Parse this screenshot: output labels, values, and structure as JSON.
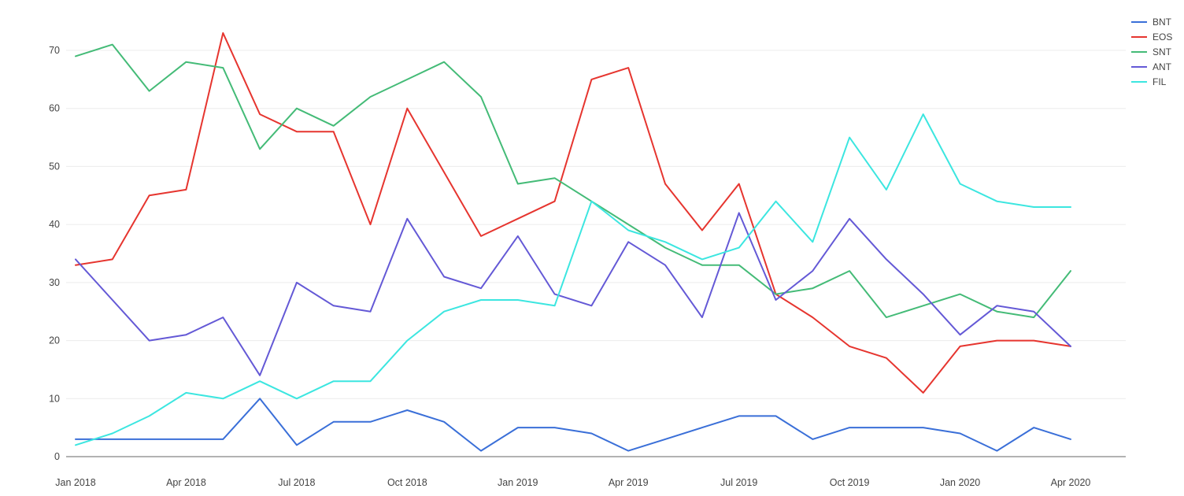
{
  "colors": {
    "background": "#ffffff",
    "gridline": "#ececec",
    "axis_line": "#666666",
    "tick_label": "#444444"
  },
  "chart_data": {
    "type": "line",
    "title": "",
    "xlabel": "",
    "ylabel": "",
    "grid": true,
    "legend_position": "top-right",
    "x_tick_labels": [
      "Jan 2018",
      "Apr 2018",
      "Jul 2018",
      "Oct 2018",
      "Jan 2019",
      "Apr 2019",
      "Jul 2019",
      "Oct 2019",
      "Jan 2020",
      "Apr 2020"
    ],
    "x_tick_month_indices": [
      0,
      3,
      6,
      9,
      12,
      15,
      18,
      21,
      24,
      27
    ],
    "y_ticks": [
      0,
      10,
      20,
      30,
      40,
      50,
      60,
      70
    ],
    "ylim": [
      0,
      75
    ],
    "series": [
      {
        "name": "BNT",
        "color": "#3a6fd8",
        "values": [
          3,
          3,
          3,
          3,
          3,
          10,
          2,
          6,
          6,
          8,
          6,
          1,
          5,
          5,
          4,
          1,
          3,
          5,
          7,
          7,
          3,
          5,
          5,
          5,
          4,
          1,
          5,
          3
        ]
      },
      {
        "name": "EOS",
        "color": "#e6352f",
        "values": [
          33,
          34,
          45,
          46,
          73,
          59,
          56,
          56,
          40,
          60,
          49,
          38,
          41,
          44,
          65,
          67,
          47,
          39,
          47,
          28,
          24,
          19,
          17,
          11,
          19,
          20,
          20,
          19
        ]
      },
      {
        "name": "SNT",
        "color": "#44bb77",
        "values": [
          69,
          71,
          63,
          68,
          67,
          53,
          60,
          57,
          62,
          65,
          68,
          62,
          47,
          48,
          44,
          40,
          36,
          33,
          33,
          28,
          29,
          32,
          24,
          26,
          28,
          25,
          24,
          32
        ]
      },
      {
        "name": "ANT",
        "color": "#6459d6",
        "values": [
          34,
          27,
          20,
          21,
          24,
          14,
          30,
          26,
          25,
          41,
          31,
          29,
          38,
          28,
          26,
          37,
          33,
          24,
          42,
          27,
          32,
          41,
          34,
          28,
          21,
          26,
          25,
          19
        ]
      },
      {
        "name": "FIL",
        "color": "#3ce6e0",
        "values": [
          2,
          4,
          7,
          11,
          10,
          13,
          10,
          13,
          13,
          20,
          25,
          27,
          27,
          26,
          44,
          39,
          37,
          34,
          36,
          44,
          37,
          55,
          46,
          59,
          47,
          44,
          43,
          43
        ]
      }
    ]
  }
}
